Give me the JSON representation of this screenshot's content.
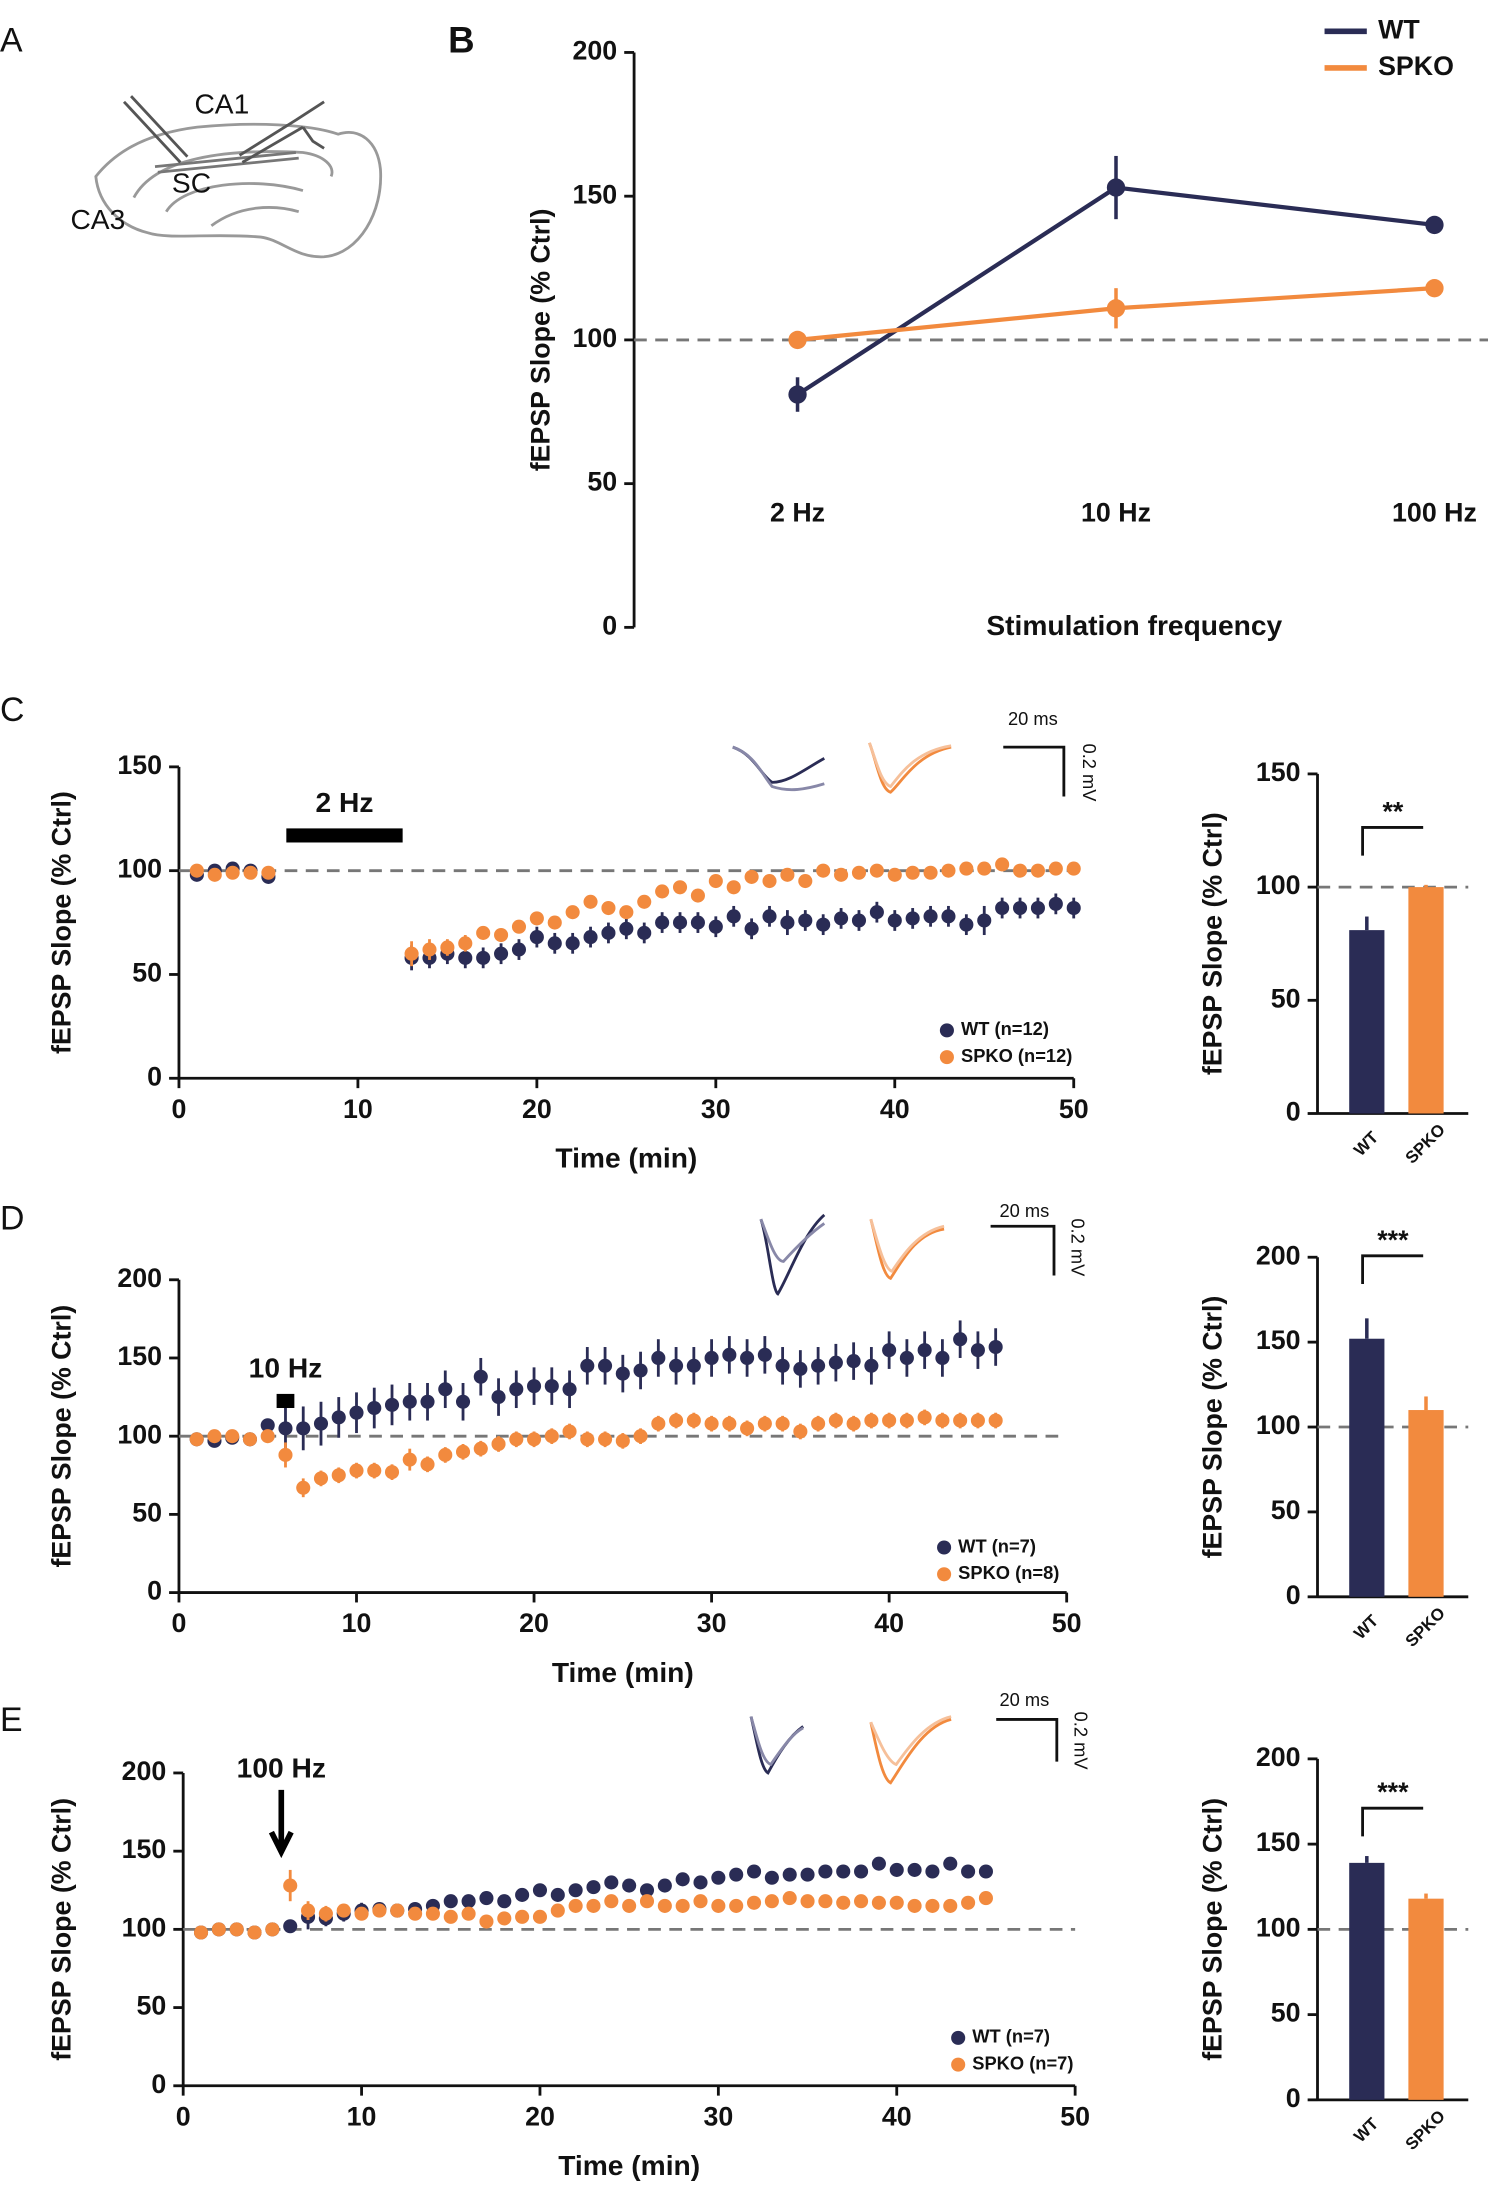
{
  "panels": [
    "A",
    "B",
    "C",
    "D",
    "E"
  ],
  "diagram": {
    "labels": [
      "CA1",
      "SC",
      "CA3"
    ]
  },
  "insets": [
    {
      "time_label": "20 ms",
      "volt_label": "0.2 mV"
    },
    {
      "time_label": "20 ms",
      "volt_label": "0.2 mV"
    },
    {
      "time_label": "20 ms",
      "volt_label": "0.2 mV"
    }
  ],
  "chart_data": [
    {
      "type": "line",
      "ylabel": "fEPSP Slope (% Ctrl)",
      "xlabel": "Stimulation frequency",
      "categories": [
        "2 Hz",
        "10 Hz",
        "100 Hz"
      ],
      "series": [
        {
          "name": "WT",
          "color": "#2a2c55",
          "values": [
            81,
            153,
            140
          ],
          "errors": [
            6,
            11,
            3
          ]
        },
        {
          "name": "SPKO",
          "color": "#f28a3e",
          "values": [
            100,
            111,
            118
          ],
          "errors": [
            2,
            7,
            2
          ]
        }
      ],
      "ylim": [
        0,
        200
      ],
      "yticks": [
        0,
        50,
        100,
        150,
        200
      ],
      "reference": 100
    },
    {
      "type": "scatter",
      "ylabel": "fEPSP Slope (% Ctrl)",
      "xlabel": "Time (min)",
      "annotation": "2 Hz",
      "stim": [
        6,
        12.5
      ],
      "x": [
        1,
        2,
        3,
        4,
        5,
        13,
        14,
        15,
        16,
        17,
        18,
        19,
        20,
        21,
        22,
        23,
        24,
        25,
        26,
        27,
        28,
        29,
        30,
        31,
        32,
        33,
        34,
        35,
        36,
        37,
        38,
        39,
        40,
        41,
        42,
        43,
        44,
        45,
        46,
        47,
        48,
        49,
        50
      ],
      "series": [
        {
          "name": "WT (n=12)",
          "color": "#2a2c55",
          "values": [
            98,
            100,
            101,
            100,
            97,
            58,
            58,
            60,
            58,
            58,
            60,
            62,
            68,
            65,
            65,
            68,
            70,
            72,
            70,
            75,
            75,
            75,
            73,
            78,
            72,
            78,
            75,
            76,
            74,
            77,
            76,
            80,
            76,
            77,
            78,
            78,
            74,
            76,
            82,
            82,
            82,
            84,
            82
          ],
          "errors": [
            3,
            3,
            3,
            3,
            3,
            6,
            5,
            5,
            5,
            5,
            5,
            5,
            5,
            5,
            5,
            5,
            5,
            5,
            5,
            5,
            5,
            5,
            5,
            5,
            5,
            5,
            6,
            5,
            5,
            5,
            5,
            5,
            5,
            5,
            5,
            5,
            5,
            7,
            5,
            5,
            5,
            5,
            5
          ]
        },
        {
          "name": "SPKO (n=12)",
          "color": "#f28a3e",
          "values": [
            100,
            98,
            99,
            99,
            99,
            60,
            62,
            63,
            65,
            70,
            69,
            73,
            77,
            75,
            80,
            85,
            82,
            80,
            85,
            90,
            92,
            88,
            95,
            92,
            97,
            95,
            98,
            95,
            100,
            98,
            99,
            100,
            98,
            99,
            99,
            100,
            101,
            101,
            103,
            100,
            100,
            101,
            101
          ],
          "errors": [
            2,
            2,
            2,
            2,
            2,
            6,
            5,
            4,
            4,
            3,
            3,
            3,
            3,
            3,
            3,
            3,
            3,
            3,
            3,
            3,
            3,
            3,
            3,
            3,
            3,
            3,
            3,
            3,
            3,
            3,
            3,
            3,
            3,
            3,
            3,
            3,
            3,
            3,
            3,
            3,
            3,
            3,
            3
          ]
        }
      ],
      "xlim": [
        0,
        50
      ],
      "xticks": [
        0,
        10,
        20,
        30,
        40,
        50
      ],
      "ylim": [
        0,
        150
      ],
      "yticks": [
        0,
        50,
        100,
        150
      ],
      "reference": 100
    },
    {
      "type": "bar",
      "ylabel": "fEPSP Slope (% Ctrl)",
      "categories": [
        "WT",
        "SPKO"
      ],
      "values": [
        81,
        100
      ],
      "errors": [
        6,
        1
      ],
      "colors": [
        "#2a2c55",
        "#f28a3e"
      ],
      "ylim": [
        0,
        150
      ],
      "yticks": [
        0,
        50,
        100,
        150
      ],
      "reference": 100,
      "significance": "**"
    },
    {
      "type": "scatter",
      "ylabel": "fEPSP Slope (% Ctrl)",
      "xlabel": "Time (min)",
      "annotation": "10 Hz",
      "stim": [
        5.5,
        6.5
      ],
      "x": [
        1,
        2,
        3,
        4,
        5,
        6,
        7,
        8,
        9,
        10,
        11,
        12,
        13,
        14,
        15,
        16,
        17,
        18,
        19,
        20,
        21,
        22,
        23,
        24,
        25,
        26,
        27,
        28,
        29,
        30,
        31,
        32,
        33,
        34,
        35,
        36,
        37,
        38,
        39,
        40,
        41,
        42,
        43,
        44,
        45,
        46
      ],
      "series": [
        {
          "name": "WT (n=7)",
          "color": "#2a2c55",
          "values": [
            98,
            97,
            99,
            98,
            107,
            105,
            105,
            108,
            112,
            115,
            118,
            120,
            122,
            122,
            130,
            122,
            138,
            125,
            130,
            132,
            132,
            130,
            145,
            145,
            140,
            142,
            150,
            145,
            145,
            150,
            152,
            150,
            152,
            145,
            143,
            145,
            147,
            148,
            145,
            155,
            150,
            155,
            150,
            162,
            155,
            157
          ],
          "errors": [
            2,
            3,
            2,
            2,
            3,
            15,
            14,
            14,
            13,
            13,
            13,
            13,
            12,
            12,
            12,
            12,
            12,
            12,
            12,
            12,
            12,
            12,
            12,
            12,
            12,
            12,
            12,
            12,
            12,
            12,
            12,
            12,
            12,
            12,
            12,
            12,
            12,
            12,
            12,
            12,
            12,
            12,
            12,
            12,
            12,
            12
          ]
        },
        {
          "name": "SPKO (n=8)",
          "color": "#f28a3e",
          "values": [
            98,
            100,
            100,
            98,
            100,
            88,
            67,
            73,
            75,
            78,
            78,
            77,
            85,
            82,
            88,
            90,
            92,
            95,
            98,
            98,
            100,
            103,
            98,
            98,
            97,
            100,
            108,
            110,
            110,
            108,
            108,
            105,
            108,
            108,
            103,
            108,
            110,
            108,
            110,
            110,
            110,
            112,
            110,
            110,
            110,
            110
          ],
          "errors": [
            2,
            2,
            2,
            2,
            2,
            8,
            6,
            5,
            5,
            5,
            5,
            5,
            7,
            5,
            5,
            5,
            5,
            5,
            5,
            5,
            5,
            5,
            5,
            5,
            5,
            5,
            5,
            5,
            5,
            5,
            5,
            5,
            5,
            5,
            5,
            5,
            5,
            5,
            5,
            5,
            5,
            5,
            5,
            5,
            5,
            5
          ]
        }
      ],
      "xlim": [
        0,
        50
      ],
      "xticks": [
        0,
        10,
        20,
        30,
        40,
        50
      ],
      "ylim": [
        0,
        200
      ],
      "yticks": [
        0,
        50,
        100,
        150,
        200
      ],
      "reference": 100
    },
    {
      "type": "bar",
      "ylabel": "fEPSP Slope (% Ctrl)",
      "categories": [
        "WT",
        "SPKO"
      ],
      "values": [
        152,
        110
      ],
      "errors": [
        12,
        8
      ],
      "colors": [
        "#2a2c55",
        "#f28a3e"
      ],
      "ylim": [
        0,
        200
      ],
      "yticks": [
        0,
        50,
        100,
        150,
        200
      ],
      "reference": 100,
      "significance": "***"
    },
    {
      "type": "scatter",
      "ylabel": "fEPSP Slope (% Ctrl)",
      "xlabel": "Time (min)",
      "annotation": "100 Hz",
      "arrow": 5.5,
      "x": [
        1,
        2,
        3,
        4,
        5,
        6,
        7,
        8,
        9,
        10,
        11,
        12,
        13,
        14,
        15,
        16,
        17,
        18,
        19,
        20,
        21,
        22,
        23,
        24,
        25,
        26,
        27,
        28,
        29,
        30,
        31,
        32,
        33,
        34,
        35,
        36,
        37,
        38,
        39,
        40,
        41,
        42,
        43,
        44,
        45
      ],
      "series": [
        {
          "name": "WT (n=7)",
          "color": "#2a2c55",
          "values": [
            98,
            100,
            100,
            98,
            100,
            102,
            108,
            107,
            110,
            112,
            113,
            112,
            113,
            115,
            118,
            118,
            120,
            118,
            122,
            125,
            122,
            125,
            127,
            130,
            128,
            125,
            128,
            132,
            130,
            133,
            135,
            137,
            133,
            135,
            135,
            137,
            137,
            137,
            142,
            138,
            138,
            137,
            142,
            137,
            137
          ],
          "errors": [
            2,
            2,
            2,
            2,
            2,
            3,
            8,
            5,
            5,
            5,
            4,
            4,
            4,
            4,
            4,
            4,
            4,
            4,
            4,
            4,
            4,
            4,
            4,
            4,
            4,
            4,
            4,
            4,
            4,
            4,
            4,
            4,
            4,
            4,
            4,
            4,
            4,
            4,
            4,
            4,
            4,
            4,
            4,
            4,
            4
          ]
        },
        {
          "name": "SPKO (n=7)",
          "color": "#f28a3e",
          "values": [
            98,
            100,
            100,
            98,
            100,
            128,
            112,
            110,
            112,
            110,
            112,
            112,
            110,
            110,
            108,
            110,
            105,
            107,
            108,
            108,
            112,
            115,
            115,
            118,
            115,
            118,
            115,
            115,
            118,
            115,
            115,
            117,
            118,
            120,
            118,
            118,
            117,
            118,
            117,
            117,
            115,
            115,
            115,
            117,
            120
          ],
          "errors": [
            2,
            2,
            2,
            2,
            2,
            10,
            6,
            5,
            4,
            4,
            3,
            3,
            3,
            3,
            3,
            3,
            3,
            3,
            3,
            3,
            3,
            3,
            3,
            3,
            3,
            3,
            3,
            3,
            3,
            3,
            3,
            3,
            3,
            3,
            3,
            3,
            3,
            3,
            3,
            3,
            3,
            3,
            3,
            3,
            3
          ]
        }
      ],
      "xlim": [
        0,
        50
      ],
      "xticks": [
        0,
        10,
        20,
        30,
        40,
        50
      ],
      "ylim": [
        0,
        200
      ],
      "yticks": [
        0,
        50,
        100,
        150,
        200
      ],
      "reference": 100
    },
    {
      "type": "bar",
      "ylabel": "fEPSP Slope (% Ctrl)",
      "categories": [
        "WT",
        "SPKO"
      ],
      "values": [
        139,
        118
      ],
      "errors": [
        4,
        3
      ],
      "colors": [
        "#2a2c55",
        "#f28a3e"
      ],
      "ylim": [
        0,
        200
      ],
      "yticks": [
        0,
        50,
        100,
        150,
        200
      ],
      "reference": 100,
      "significance": "***"
    }
  ]
}
